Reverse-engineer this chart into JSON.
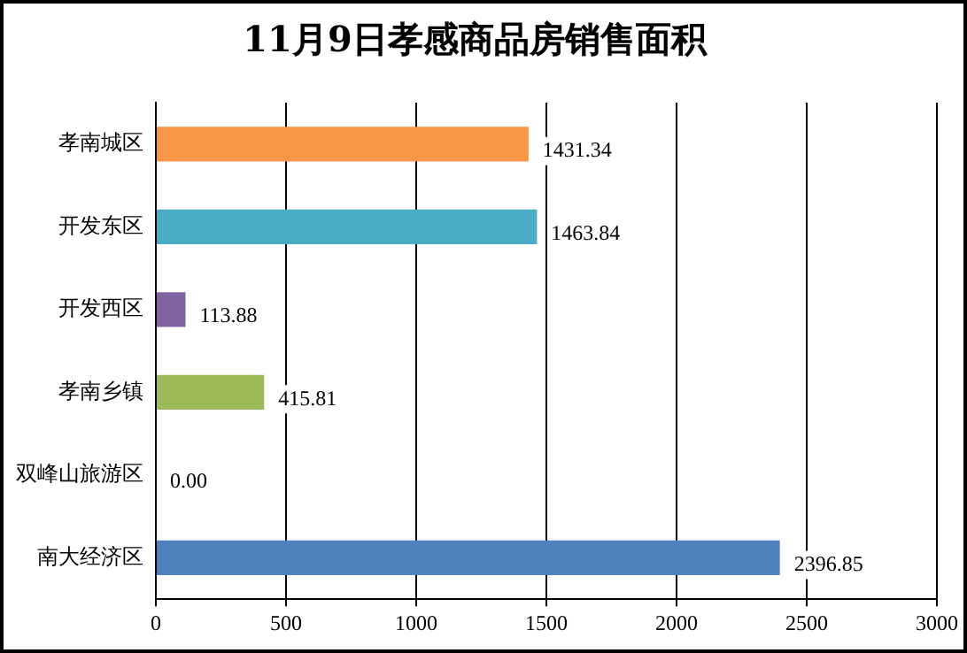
{
  "chart_data": {
    "type": "bar",
    "orientation": "horizontal",
    "title": "11月9日孝感商品房销售面积",
    "categories": [
      "孝南城区",
      "开发东区",
      "开发西区",
      "孝南乡镇",
      "双峰山旅游区",
      "南大经济区"
    ],
    "values": [
      1431.34,
      1463.84,
      113.88,
      415.81,
      0,
      2396.85
    ],
    "colors": [
      "#f79646",
      "#4bacc6",
      "#8064a2",
      "#9bbb59",
      "#4f81bd",
      "#4f81bd"
    ],
    "value_labels": [
      "1431.34",
      "1463.84",
      "113.88",
      "415.81",
      "0.00",
      "2396.85"
    ],
    "xlim": [
      0,
      3000
    ],
    "xticks": [
      0,
      500,
      1000,
      1500,
      2000,
      2500,
      3000
    ],
    "grid": "x",
    "legend": false
  }
}
